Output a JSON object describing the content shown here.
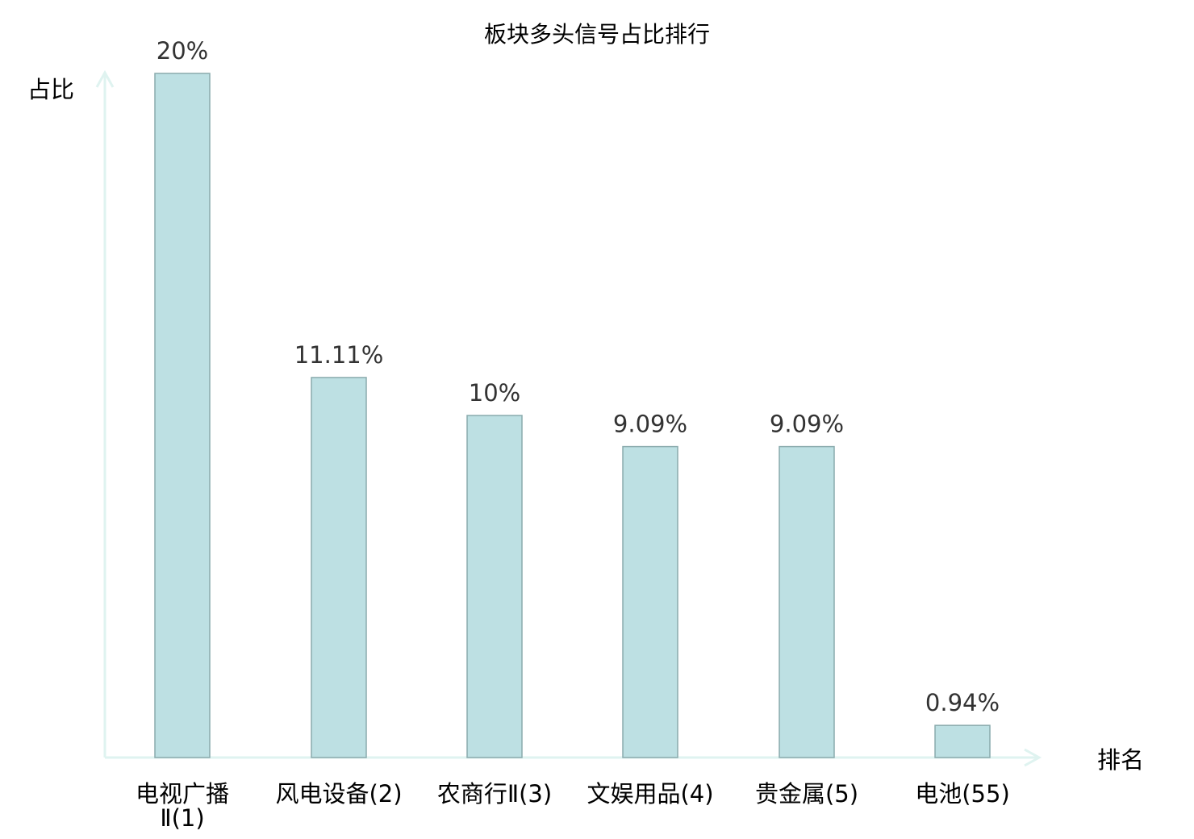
{
  "chart_data": {
    "type": "bar",
    "title": "板块多头信号占比排行",
    "xlabel": "排名",
    "ylabel": "占比",
    "categories": [
      "电视广播Ⅱ(1)",
      "风电设备(2)",
      "农商行Ⅱ(3)",
      "文娱用品(4)",
      "贵金属(5)",
      "电池(55)"
    ],
    "category_lines": [
      [
        "电视广播",
        "Ⅱ(1)"
      ],
      [
        "风电设备(2)"
      ],
      [
        "农商行Ⅱ(3)"
      ],
      [
        "文娱用品(4)"
      ],
      [
        "贵金属(5)"
      ],
      [
        "电池(55)"
      ]
    ],
    "values": [
      20,
      11.11,
      10,
      9.09,
      9.09,
      0.94
    ],
    "data_labels": [
      "20%",
      "11.11%",
      "10%",
      "9.09%",
      "9.09%",
      "0.94%"
    ],
    "ylim": [
      0,
      20
    ],
    "grid": false,
    "highlight_index": 5,
    "colors": {
      "bar_fill": "#bde0e3",
      "bar_stroke": "#8aabad",
      "axis": "#dff3f0",
      "highlight_label": "#ff0000",
      "label": "#000000",
      "data_label": "#333333"
    }
  }
}
